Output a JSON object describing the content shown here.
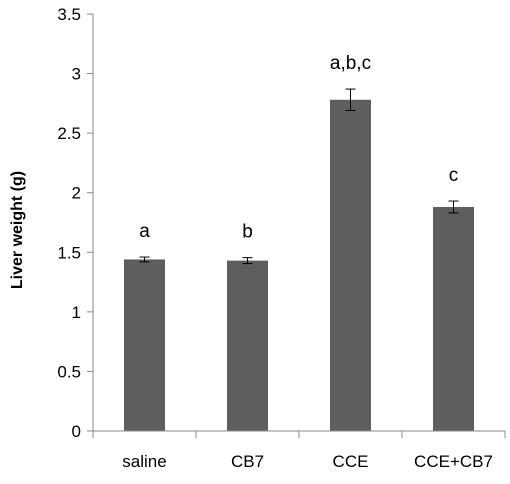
{
  "chart_data": {
    "type": "bar",
    "title": "",
    "xlabel": "",
    "ylabel": "Liver weight (g)",
    "ylim": [
      0,
      3.5
    ],
    "yticks": [
      "0",
      "0.5",
      "1",
      "1.5",
      "2",
      "2.5",
      "3",
      "3.5"
    ],
    "grid": false,
    "categories": [
      "saline",
      "CB7",
      "CCE",
      "CCE+CB7"
    ],
    "values": [
      1.44,
      1.43,
      2.78,
      1.88
    ],
    "errors": [
      0.02,
      0.025,
      0.09,
      0.05
    ],
    "annotations": [
      "a",
      "b",
      "a,b,c",
      "c"
    ],
    "bar_color": "#5e5e5e"
  }
}
